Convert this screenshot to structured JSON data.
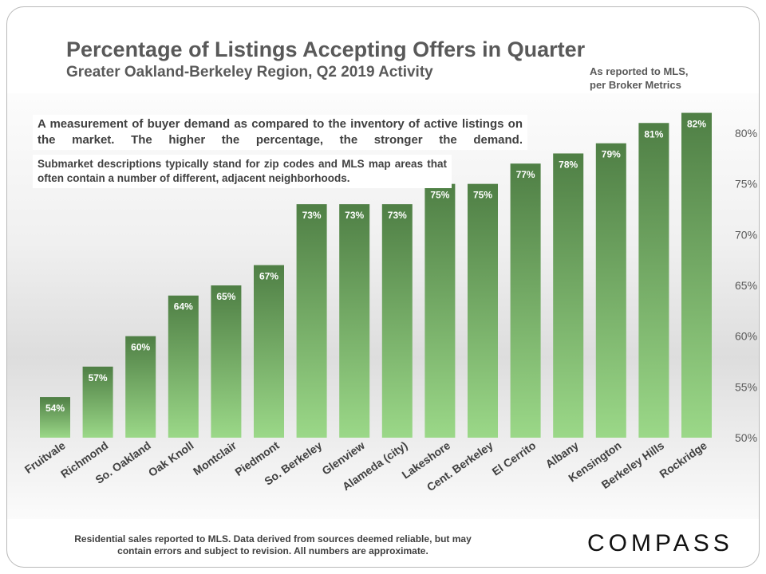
{
  "header": {
    "title": "Percentage of Listings Accepting Offers in Quarter",
    "subtitle": "Greater Oakland-Berkeley Region, Q2 2019 Activity",
    "source_note_line1": "As reported to MLS,",
    "source_note_line2": "per Broker Metrics"
  },
  "notes": {
    "demand_note": "A measurement of buyer demand as compared to the inventory of active listings on the market. The higher the percentage, the stronger the demand.",
    "submarket_note": "Submarket descriptions typically stand for zip codes and MLS map areas that often contain a number of different, adjacent neighborhoods."
  },
  "footer": {
    "disclaimer_line1": "Residential sales reported to MLS. Data derived from sources deemed reliable, but may",
    "disclaimer_line2": "contain errors and subject to revision.  All numbers are approximate.",
    "logo_text": "COMPASS"
  },
  "chart_data": {
    "type": "bar",
    "categories": [
      "Fruitvale",
      "Richmond",
      "So. Oakland",
      "Oak Knoll",
      "Montclair",
      "Piedmont",
      "So. Berkeley",
      "Glenview",
      "Alameda (city)",
      "Lakeshore",
      "Cent. Berkeley",
      "El Cerrito",
      "Albany",
      "Kensington",
      "Berkeley Hills",
      "Rockridge"
    ],
    "values": [
      54,
      57,
      60,
      64,
      65,
      67,
      73,
      73,
      73,
      75,
      75,
      77,
      78,
      79,
      81,
      82
    ],
    "value_labels": [
      "54%",
      "57%",
      "60%",
      "64%",
      "65%",
      "67%",
      "73%",
      "73%",
      "73%",
      "75%",
      "75%",
      "77%",
      "78%",
      "79%",
      "81%",
      "82%"
    ],
    "ylim": [
      50,
      83
    ],
    "yticks": [
      50,
      55,
      60,
      65,
      70,
      75,
      80
    ],
    "ytick_labels": [
      "50%",
      "55%",
      "60%",
      "65%",
      "70%",
      "75%",
      "80%"
    ],
    "y_axis_side": "right",
    "grid": false,
    "legend": false,
    "colors": {
      "bar_top": "#4f7f45",
      "bar_bottom": "#9bd888",
      "label": "#ffffff",
      "axis_text": "#404040",
      "tick_text": "#595959"
    }
  }
}
